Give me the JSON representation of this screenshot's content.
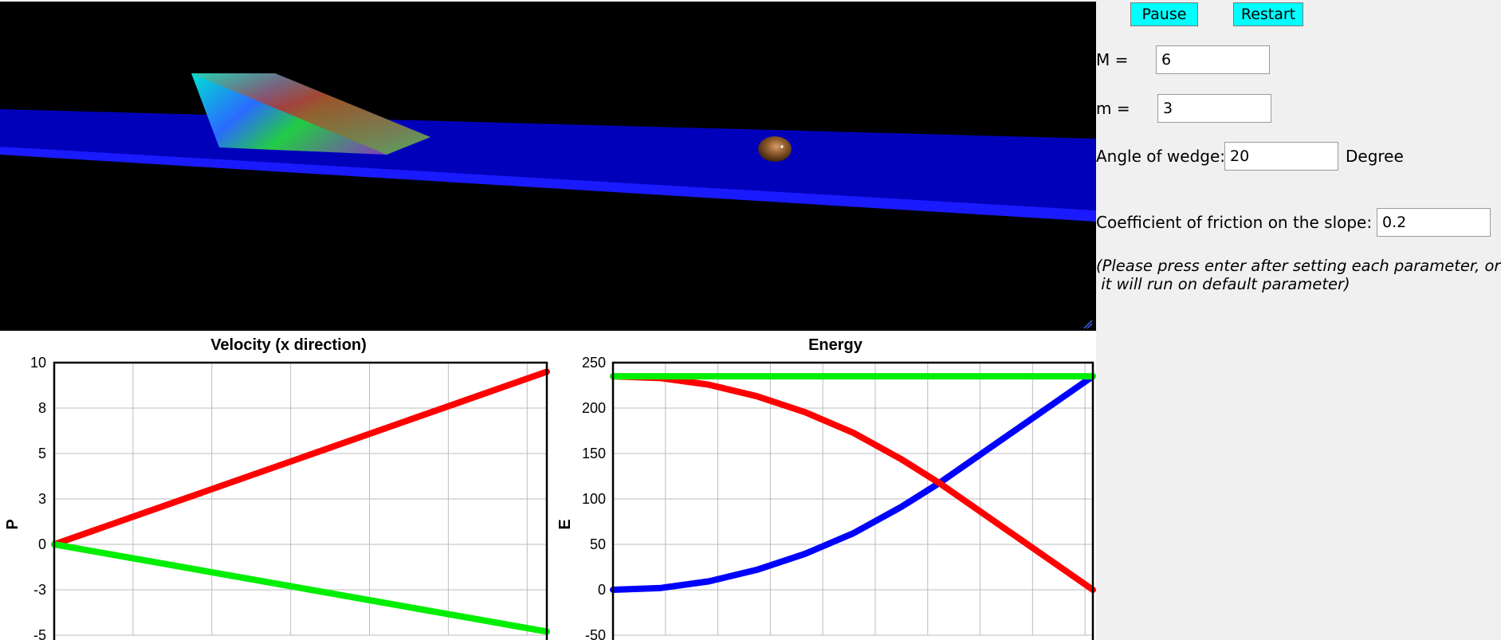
{
  "controls": {
    "pause_label": "Pause",
    "restart_label": "Restart",
    "M_label": "M =",
    "M_value": "6",
    "m_label": "m =",
    "m_value": "3",
    "angle_label": "Angle of wedge:",
    "angle_value": "20",
    "angle_unit": "Degree",
    "friction_label": "Coefficient of friction on the slope:",
    "friction_value": "0.2",
    "note": "(Please press enter after setting each parameter, or\n it will run on default parameter)"
  },
  "scene": {
    "background": "#000000",
    "ground_color": "#0000bb",
    "ball_color": "#8b5a2b"
  },
  "chart_data": [
    {
      "type": "line",
      "title": "Velocity (x direction)",
      "ylabel": "P",
      "xlabel": "",
      "ylim": [
        -5,
        10
      ],
      "yticks": [
        10,
        8,
        5,
        3,
        0,
        -3,
        -5
      ],
      "grid": true,
      "series": [
        {
          "color": "#ff0000",
          "x": [
            0,
            1
          ],
          "y": [
            0,
            9.5
          ]
        },
        {
          "color": "#00ee00",
          "x": [
            0,
            1
          ],
          "y": [
            0,
            -4.8
          ]
        }
      ]
    },
    {
      "type": "line",
      "title": "Energy",
      "ylabel": "E",
      "xlabel": "",
      "ylim": [
        -50,
        250
      ],
      "yticks": [
        250,
        200,
        150,
        100,
        50,
        0,
        -50
      ],
      "grid": true,
      "series": [
        {
          "color": "#0000ff",
          "x": [
            0,
            0.1,
            0.2,
            0.3,
            0.4,
            0.5,
            0.6,
            0.68,
            1.0
          ],
          "y": [
            0,
            2,
            9.3,
            22,
            39.5,
            62,
            91,
            117.5,
            235
          ]
        },
        {
          "color": "#ff0000",
          "x": [
            0,
            0.1,
            0.2,
            0.3,
            0.4,
            0.5,
            0.6,
            0.68,
            1.0
          ],
          "y": [
            235,
            233,
            225.7,
            213,
            195.5,
            173,
            144,
            117.5,
            0
          ]
        },
        {
          "color": "#00ee00",
          "x": [
            0,
            1
          ],
          "y": [
            235,
            235
          ]
        }
      ]
    }
  ]
}
